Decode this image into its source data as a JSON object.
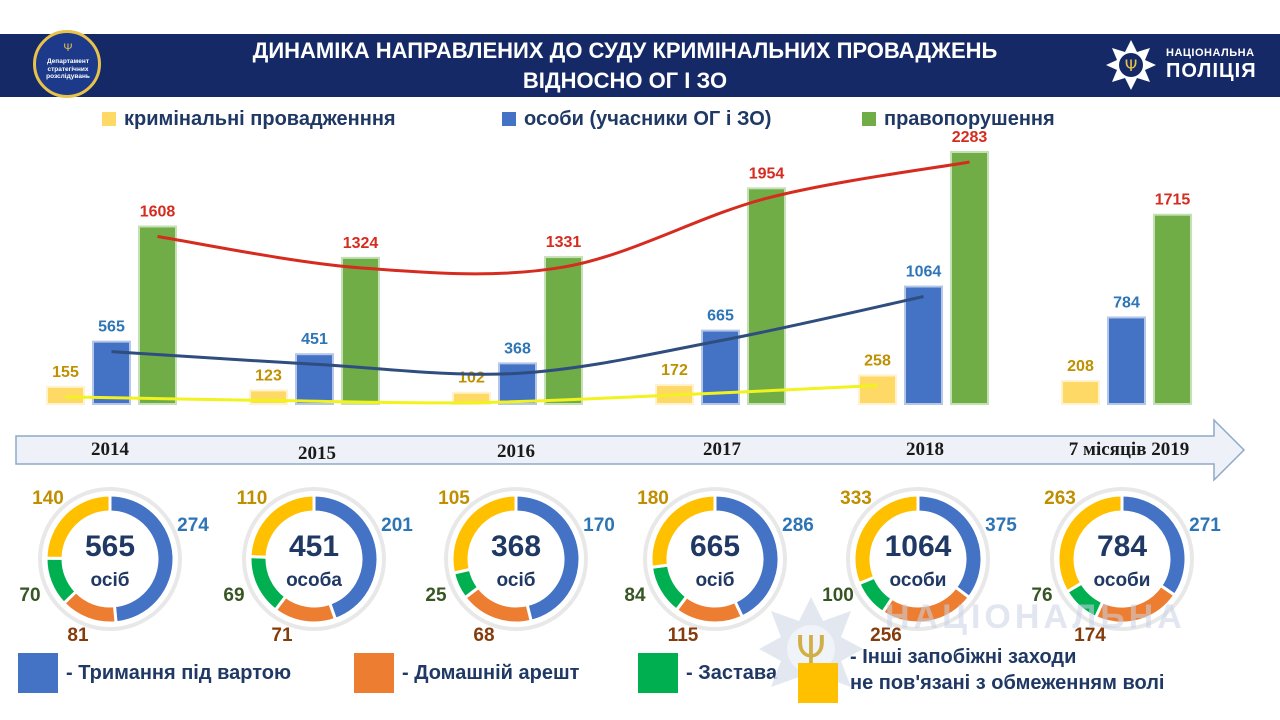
{
  "header": {
    "title_line1": "ДИНАМІКА НАПРАВЛЕНИХ ДО СУДУ КРИМІНАЛЬНИХ ПРОВАДЖЕНЬ",
    "title_line2": "ВІДНОСНО ОГ І ЗО",
    "dept_logo_text": [
      "Департамент",
      "стратегічних",
      "розслідувань"
    ],
    "police_logo_line1": "НАЦІОНАЛЬНА",
    "police_logo_line2": "ПОЛІЦІЯ",
    "police_icon": "police-star-emblem-icon"
  },
  "colors": {
    "header_bg": "#152966",
    "proceedings": "#ffd966",
    "persons": "#4472c4",
    "offenses": "#70ad47",
    "offenses_trend": "#d62b1f",
    "persons_trend": "#2f4d7e",
    "proceedings_trend": "#f2f21e",
    "custody": "#4472c4",
    "house_arrest": "#ed7d31",
    "bail": "#00b050",
    "other": "#ffc000",
    "label_persons": "#2e75b6",
    "label_house_arrest": "#843c0c",
    "label_bail": "#375623",
    "label_other": "#bf8f00"
  },
  "legend": [
    {
      "label": "кримінальні провадженння",
      "color": "#ffd966"
    },
    {
      "label": "особи (учасники ОГ і ЗО)",
      "color": "#4472c4"
    },
    {
      "label": "правопорушення",
      "color": "#70ad47"
    }
  ],
  "chart_data": [
    {
      "type": "bar",
      "categories": [
        "2014",
        "2015",
        "2016",
        "2017",
        "2018",
        "7 місяців 2019"
      ],
      "series": [
        {
          "name": "кримінальні провадженння",
          "values": [
            155,
            123,
            102,
            172,
            258,
            208
          ]
        },
        {
          "name": "особи (учасники ОГ і ЗО)",
          "values": [
            565,
            451,
            368,
            665,
            1064,
            784
          ]
        },
        {
          "name": "правопорушення",
          "values": [
            1608,
            1324,
            1331,
            1954,
            2283,
            1715
          ]
        }
      ],
      "trend_lines": "smoothed trend lines drawn over each series for 2014–2018",
      "ylim": [
        0,
        2400
      ],
      "grid": false,
      "legend_position": "top"
    },
    {
      "type": "pie",
      "style": "donut",
      "slice_names": [
        "Тримання під вартою",
        "Домашній арешт",
        "Застава",
        "Інші запобіжні заходи не пов'язані з обмеженням волі"
      ],
      "donuts": [
        {
          "category": "2014",
          "center_value": "565",
          "center_unit": "осіб",
          "values": [
            274,
            81,
            70,
            140
          ]
        },
        {
          "category": "2015",
          "center_value": "451",
          "center_unit": "особа",
          "values": [
            201,
            71,
            69,
            110
          ]
        },
        {
          "category": "2016",
          "center_value": "368",
          "center_unit": "осіб",
          "values": [
            170,
            68,
            25,
            105
          ]
        },
        {
          "category": "2017",
          "center_value": "665",
          "center_unit": "осіб",
          "values": [
            286,
            115,
            84,
            180
          ]
        },
        {
          "category": "2018",
          "center_value": "1064",
          "center_unit": "особи",
          "values": [
            375,
            256,
            100,
            333
          ]
        },
        {
          "category": "7 місяців 2019",
          "center_value": "784",
          "center_unit": "особи",
          "values": [
            271,
            174,
            76,
            263
          ]
        }
      ]
    }
  ],
  "bottom_legend": [
    {
      "label": "- Тримання під вартою",
      "color": "#4472c4"
    },
    {
      "label": "- Домашній арешт",
      "color": "#ed7d31"
    },
    {
      "label": "- Застава",
      "color": "#00b050"
    },
    {
      "label_line1": "- Інші запобіжні заходи",
      "label_line2": "не пов'язані з обмеженням волі",
      "color": "#ffc000"
    }
  ],
  "watermark": {
    "text": "НАЦІОНАЛЬНА",
    "icon": "police-star-emblem-icon"
  }
}
